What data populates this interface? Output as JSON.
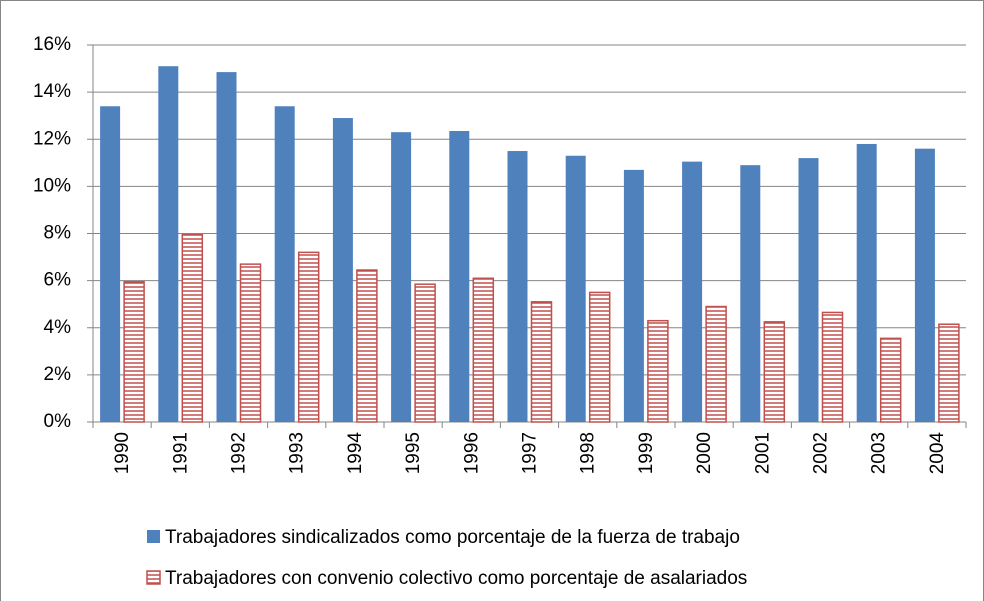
{
  "chart_data": {
    "type": "bar",
    "categories": [
      "1990",
      "1991",
      "1992",
      "1993",
      "1994",
      "1995",
      "1996",
      "1997",
      "1998",
      "1999",
      "2000",
      "2001",
      "2002",
      "2003",
      "2004"
    ],
    "series": [
      {
        "name": "Trabajadores sindicalizados como porcentaje de la fuerza de trabajo",
        "color": "#4f81bd",
        "values": [
          13.4,
          15.1,
          14.85,
          13.4,
          12.9,
          12.3,
          12.35,
          11.5,
          11.3,
          10.7,
          11.05,
          10.9,
          11.2,
          11.8,
          11.6
        ]
      },
      {
        "name": "Trabajadores con convenio colectivo como porcentaje de asalariados",
        "color": "#c0504d",
        "values": [
          5.95,
          7.95,
          6.7,
          7.2,
          6.45,
          5.85,
          6.1,
          5.1,
          5.5,
          4.3,
          4.9,
          4.25,
          4.65,
          3.55,
          4.15
        ]
      }
    ],
    "ylim": [
      0,
      16
    ],
    "yticks": [
      {
        "value": 0,
        "label": "0%"
      },
      {
        "value": 2,
        "label": "2%"
      },
      {
        "value": 4,
        "label": "4%"
      },
      {
        "value": 6,
        "label": "6%"
      },
      {
        "value": 8,
        "label": "8%"
      },
      {
        "value": 10,
        "label": "10%"
      },
      {
        "value": 12,
        "label": "12%"
      },
      {
        "value": 14,
        "label": "14%"
      },
      {
        "value": 16,
        "label": "16%"
      }
    ],
    "grid": true
  }
}
